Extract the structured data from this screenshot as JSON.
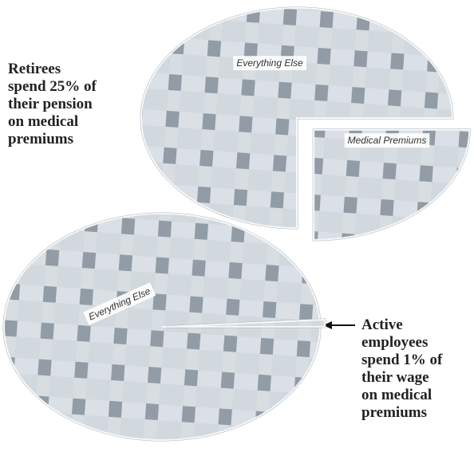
{
  "chart_data": [
    {
      "type": "pie",
      "annotation": "Retirees\nspend 25% of\ntheir pension\non medical\npremiums",
      "categories": [
        "Everything Else",
        "Medical Premiums"
      ],
      "values": [
        75,
        25
      ],
      "colors": [
        "#c2cbd3",
        "#c2cbd3"
      ]
    },
    {
      "type": "pie",
      "annotation": "Active\nemployees\nspend 1% of\ntheir wage\non medical\npremiums",
      "categories": [
        "Everything Else",
        null
      ],
      "values": [
        99,
        1
      ],
      "colors": [
        "#c2cbd3",
        "#c2cbd3"
      ]
    }
  ]
}
